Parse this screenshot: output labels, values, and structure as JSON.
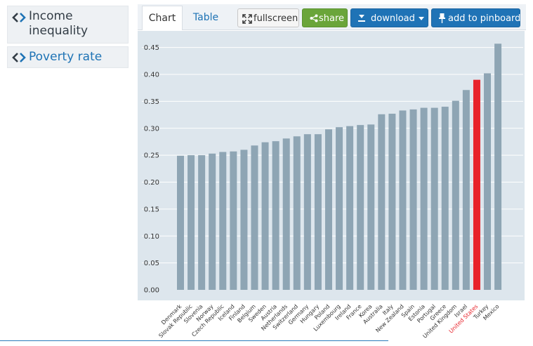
{
  "sidebar": {
    "items": [
      {
        "label_line1": "Income",
        "label_line2": "inequality",
        "icon": "double-chevron-icon",
        "active": false
      },
      {
        "label": "Poverty rate",
        "icon": "double-chevron-icon",
        "active": true
      }
    ]
  },
  "tabs": [
    {
      "label": "Chart",
      "active": true
    },
    {
      "label": "Table",
      "active": false
    }
  ],
  "toolbar": {
    "fullscreen": "fullscreen",
    "share": "share",
    "download": "download",
    "pin": "add to pinboard"
  },
  "colors": {
    "bar": "#8ea5b4",
    "highlight": "#e8232b",
    "plot_bg": "#dde6ed",
    "accent": "#1f73b6",
    "share": "#6aa53a"
  },
  "chart_data": {
    "type": "bar",
    "ylim": [
      0,
      0.45
    ],
    "yticks": [
      "0.00",
      "0.05",
      "0.10",
      "0.15",
      "0.20",
      "0.25",
      "0.30",
      "0.35",
      "0.40",
      "0.45"
    ],
    "highlight": "United States",
    "categories": [
      "Denmark",
      "Slovak Republic",
      "Slovenia",
      "Norway",
      "Czech Republic",
      "Iceland",
      "Finland",
      "Belgium",
      "Sweden",
      "Austria",
      "Netherlands",
      "Switzerland",
      "Germany",
      "Hungary",
      "Poland",
      "Luxembourg",
      "Ireland",
      "France",
      "Korea",
      "Australia",
      "Italy",
      "New Zealand",
      "Spain",
      "Estonia",
      "Portugal",
      "Greece",
      "United Kingdom",
      "Israel",
      "United States",
      "Turkey",
      "Mexico"
    ],
    "values": [
      0.249,
      0.25,
      0.25,
      0.253,
      0.256,
      0.257,
      0.26,
      0.268,
      0.274,
      0.276,
      0.281,
      0.285,
      0.289,
      0.289,
      0.298,
      0.302,
      0.304,
      0.306,
      0.307,
      0.326,
      0.327,
      0.333,
      0.335,
      0.338,
      0.338,
      0.34,
      0.351,
      0.371,
      0.39,
      0.402,
      0.457
    ]
  }
}
